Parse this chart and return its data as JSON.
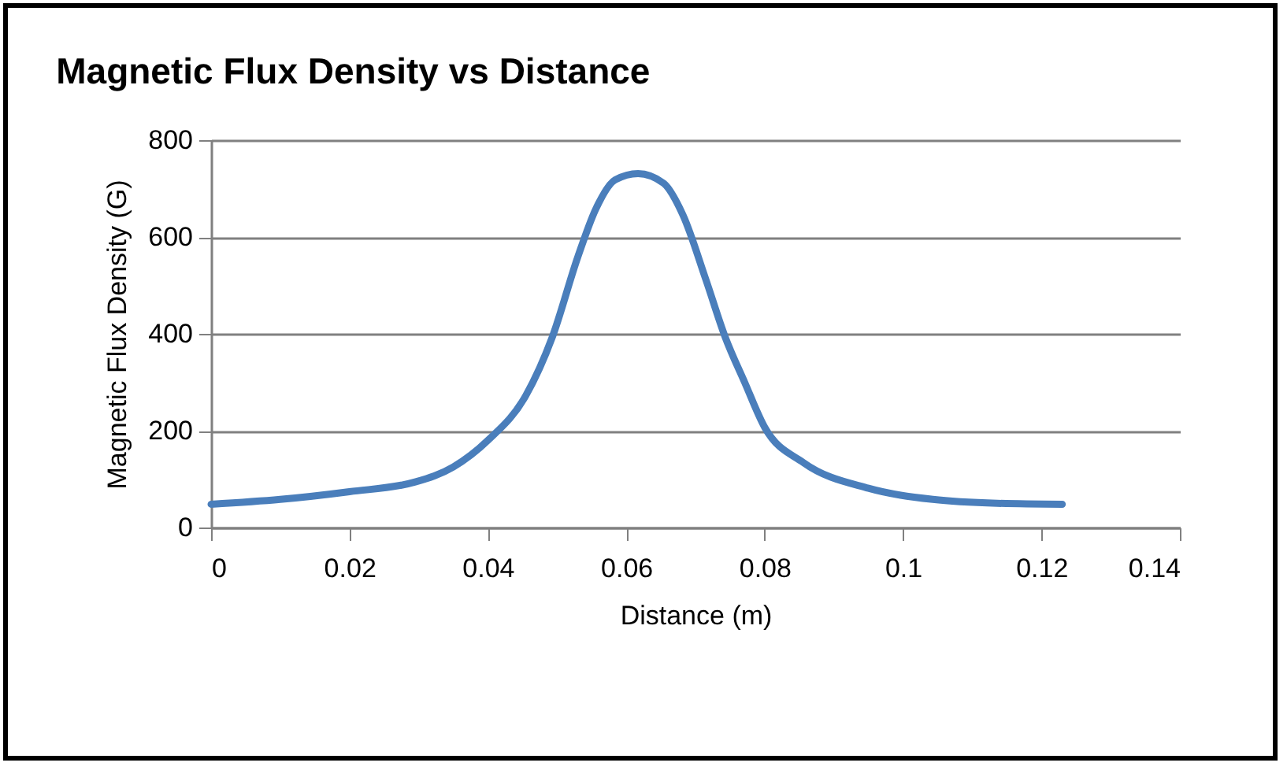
{
  "chart_data": {
    "type": "line",
    "title": "Magnetic Flux Density vs Distance",
    "xlabel": "Distance (m)",
    "ylabel": "Magnetic Flux Density (G)",
    "x": [
      0,
      0.01,
      0.02,
      0.0295,
      0.035,
      0.04,
      0.0455,
      0.0493,
      0.053,
      0.0556,
      0.0584,
      0.0617,
      0.0654,
      0.0682,
      0.0715,
      0.0743,
      0.0771,
      0.08,
      0.0856,
      0.095,
      0.1043,
      0.1136,
      0.123
    ],
    "series": [
      {
        "color": "#4a7ebb",
        "values": [
          48,
          58,
          74,
          94,
          125,
          180,
          273,
          393,
          559,
          658,
          718,
          731,
          711,
          645,
          512,
          393,
          300,
          207,
          134,
          81,
          58,
          50,
          48
        ]
      }
    ],
    "xlim": [
      0,
      0.14
    ],
    "xticks": [
      0,
      0.02,
      0.04,
      0.06,
      0.08,
      0.1,
      0.12,
      0.14
    ],
    "ylim": [
      0,
      800
    ],
    "yticks": [
      0,
      200,
      400,
      600,
      800
    ],
    "grid": "y",
    "legend": false
  }
}
